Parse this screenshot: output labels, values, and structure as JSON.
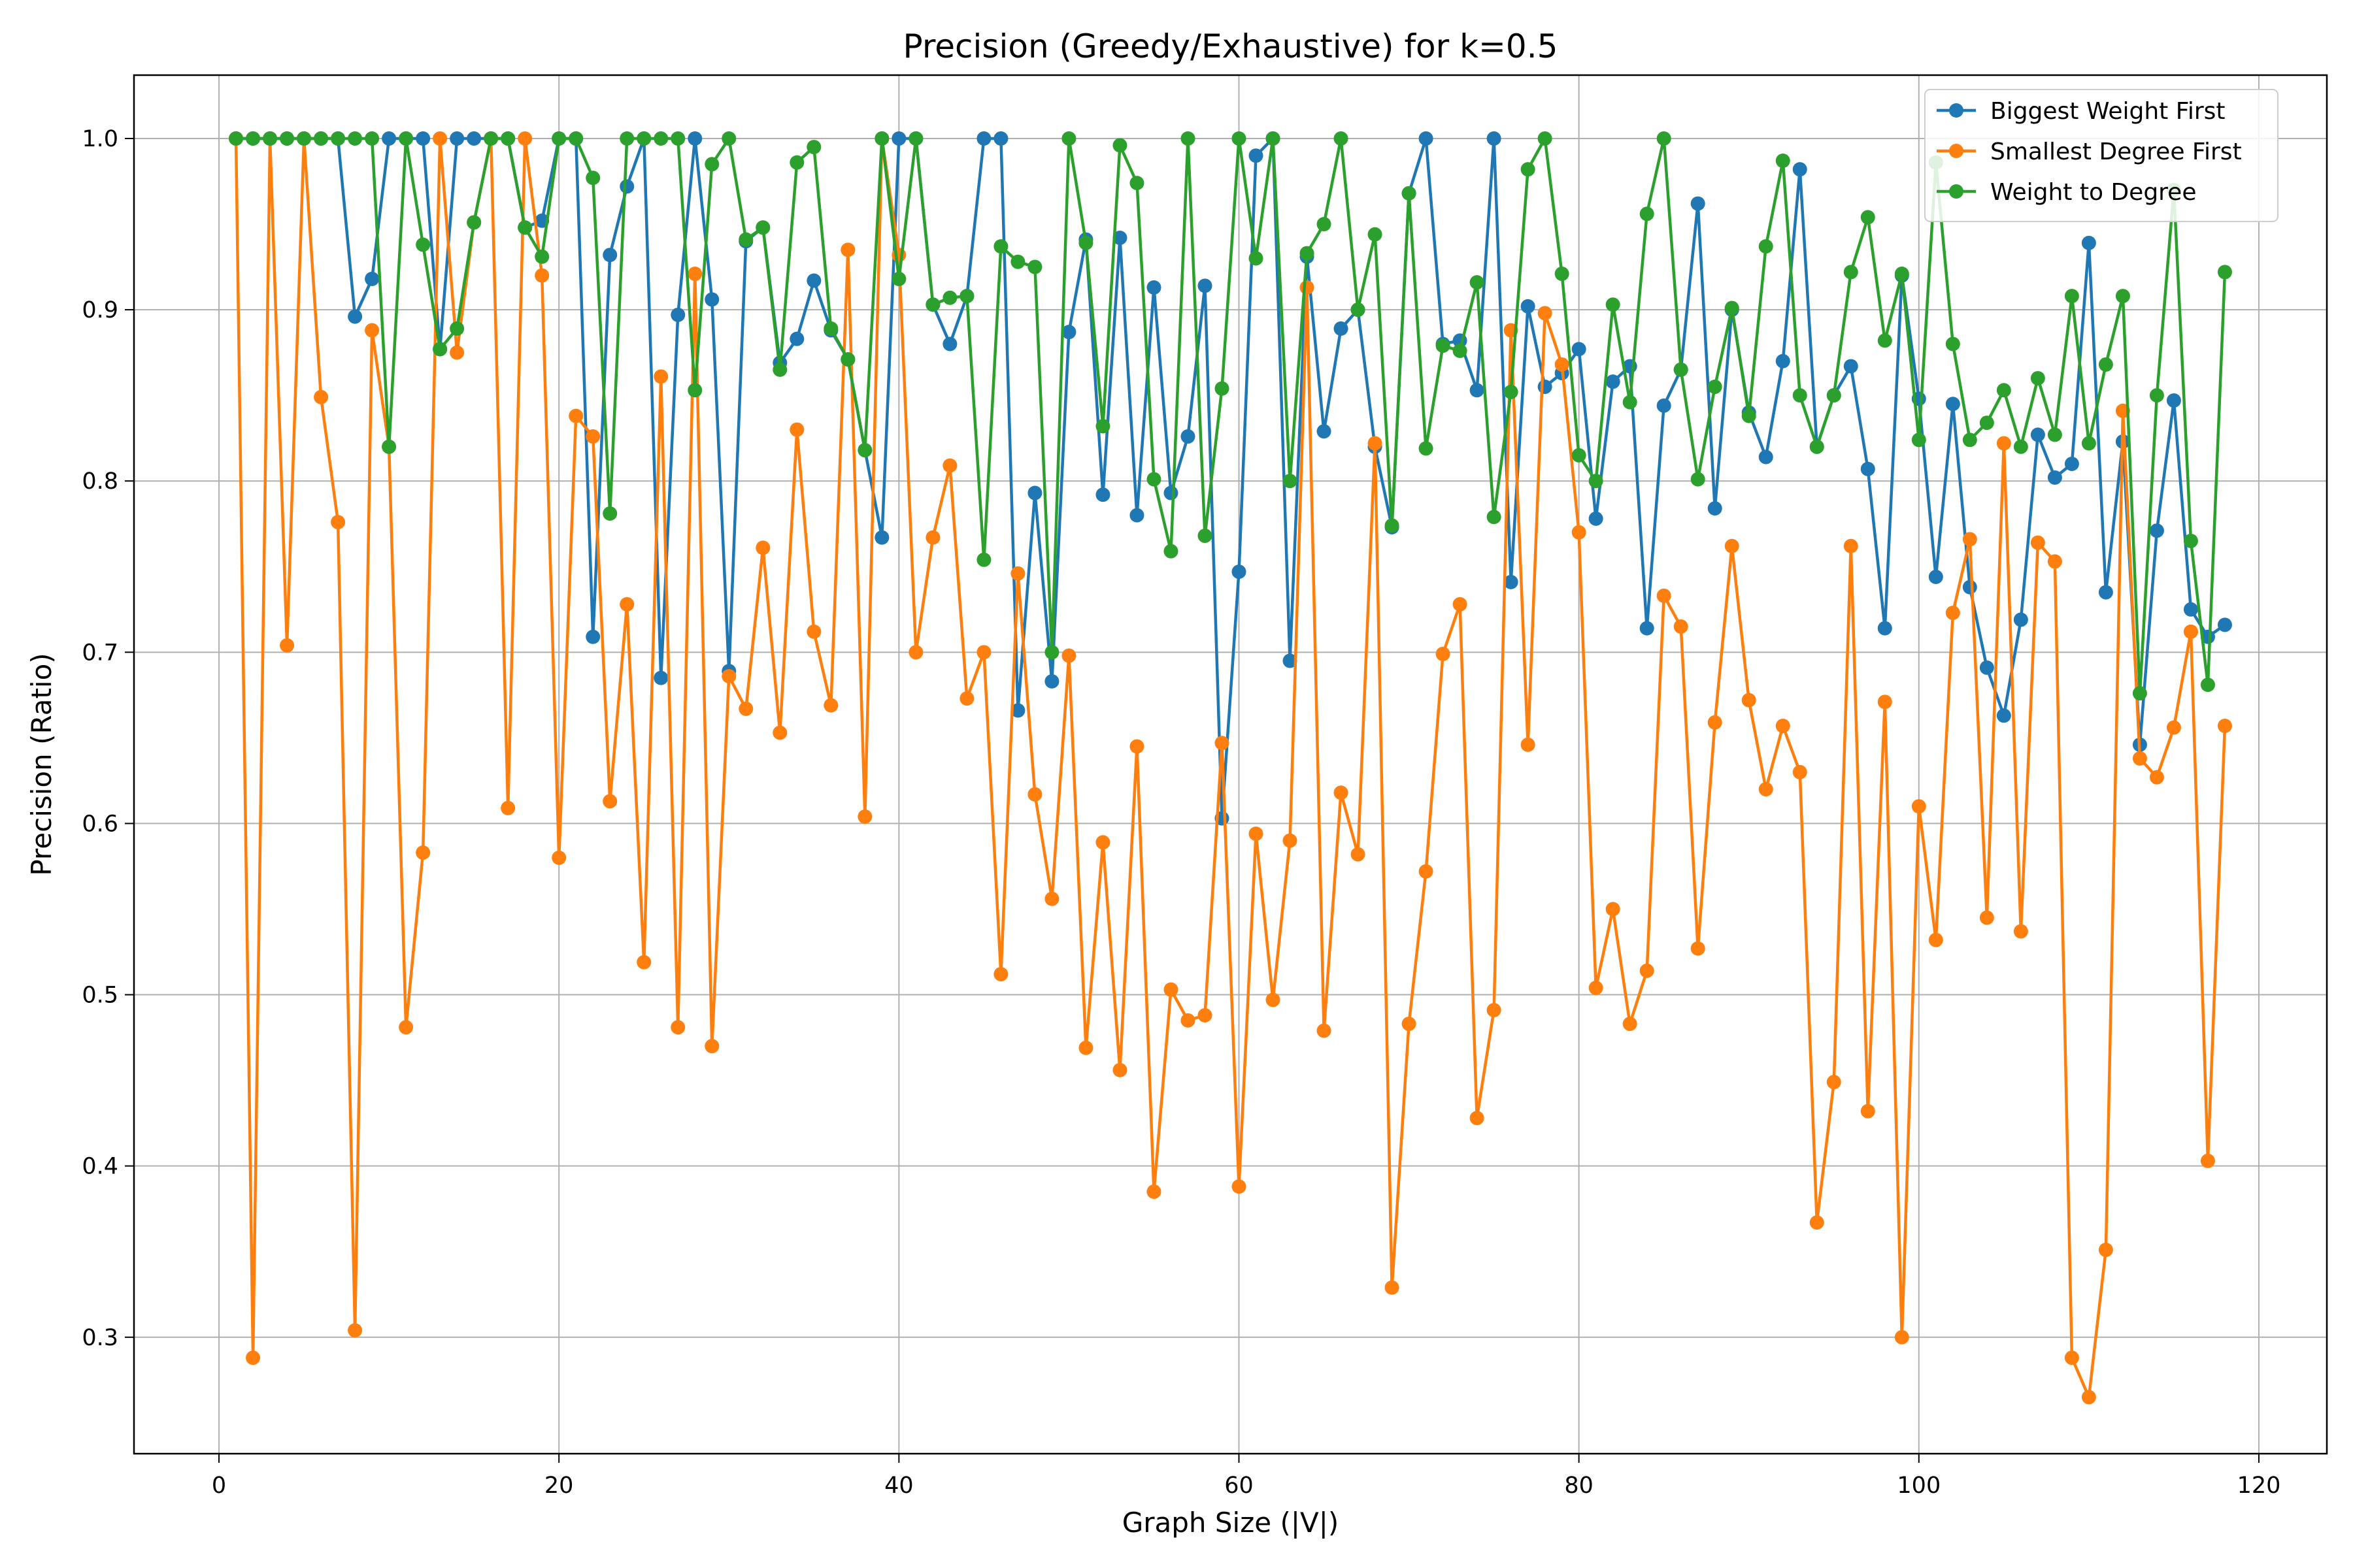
{
  "chart_data": {
    "type": "line",
    "title": "Precision (Greedy/Exhaustive) for k=0.5",
    "xlabel": "Graph Size (|V|)",
    "ylabel": "Precision (Ratio)",
    "xlim": [
      -5,
      124
    ],
    "ylim": [
      0.232,
      1.037
    ],
    "xticks": [
      0,
      20,
      40,
      60,
      80,
      100,
      120
    ],
    "yticks": [
      0.3,
      0.4,
      0.5,
      0.6,
      0.7,
      0.8,
      0.9,
      1.0
    ],
    "grid": true,
    "legend_position": "top-right",
    "x": [
      1,
      2,
      3,
      4,
      5,
      6,
      7,
      8,
      9,
      10,
      11,
      12,
      13,
      14,
      15,
      16,
      17,
      18,
      19,
      20,
      21,
      22,
      23,
      24,
      25,
      26,
      27,
      28,
      29,
      30,
      31,
      32,
      33,
      34,
      35,
      36,
      37,
      38,
      39,
      40,
      41,
      42,
      43,
      44,
      45,
      46,
      47,
      48,
      49,
      50,
      51,
      52,
      53,
      54,
      55,
      56,
      57,
      58,
      59,
      60,
      61,
      62,
      63,
      64,
      65,
      66,
      67,
      68,
      69,
      70,
      71,
      72,
      73,
      74,
      75,
      76,
      77,
      78,
      79,
      80,
      81,
      82,
      83,
      84,
      85,
      86,
      87,
      88,
      89,
      90,
      91,
      92,
      93,
      94,
      95,
      96,
      97,
      98,
      99,
      100,
      101,
      102,
      103,
      104,
      105,
      106,
      107,
      108,
      109,
      110,
      111,
      112,
      113,
      114,
      115,
      116,
      117,
      118
    ],
    "series": [
      {
        "name": "Biggest Weight First",
        "color": "#1f77b4",
        "values": [
          1.0,
          1.0,
          1.0,
          1.0,
          1.0,
          1.0,
          1.0,
          0.896,
          0.918,
          1.0,
          1.0,
          1.0,
          0.877,
          1.0,
          1.0,
          1.0,
          1.0,
          0.948,
          0.952,
          1.0,
          1.0,
          0.709,
          0.932,
          0.972,
          1.0,
          0.685,
          0.897,
          1.0,
          0.906,
          0.689,
          0.94,
          0.948,
          0.869,
          0.883,
          0.917,
          0.888,
          0.871,
          0.818,
          0.767,
          1.0,
          1.0,
          0.903,
          0.88,
          0.908,
          1.0,
          1.0,
          0.666,
          0.793,
          0.683,
          0.887,
          0.941,
          0.792,
          0.942,
          0.78,
          0.913,
          0.793,
          0.826,
          0.914,
          0.603,
          0.747,
          0.99,
          1.0,
          0.695,
          0.931,
          0.829,
          0.889,
          0.9,
          0.82,
          0.773,
          0.968,
          1.0,
          0.88,
          0.882,
          0.853,
          1.0,
          0.741,
          0.902,
          0.855,
          0.863,
          0.877,
          0.778,
          0.858,
          0.867,
          0.714,
          0.844,
          0.865,
          0.962,
          0.784,
          0.9,
          0.84,
          0.814,
          0.87,
          0.982,
          0.82,
          0.85,
          0.867,
          0.807,
          0.714,
          0.92,
          0.848,
          0.744,
          0.845,
          0.738,
          0.691,
          0.663,
          0.719,
          0.827,
          0.802,
          0.81,
          0.939,
          0.735,
          0.823,
          0.646,
          0.771,
          0.847,
          0.725,
          0.709,
          0.716
        ]
      },
      {
        "name": "Smallest Degree First",
        "color": "#ff7f0e",
        "values": [
          1.0,
          0.288,
          1.0,
          0.704,
          1.0,
          0.849,
          0.776,
          0.304,
          0.888,
          0.82,
          0.481,
          0.583,
          1.0,
          0.875,
          0.951,
          1.0,
          0.609,
          1.0,
          0.92,
          0.58,
          0.838,
          0.826,
          0.613,
          0.728,
          0.519,
          0.861,
          0.481,
          0.921,
          0.47,
          0.686,
          0.667,
          0.761,
          0.653,
          0.83,
          0.712,
          0.669,
          0.935,
          0.604,
          1.0,
          0.932,
          0.7,
          0.767,
          0.809,
          0.673,
          0.7,
          0.512,
          0.746,
          0.617,
          0.556,
          0.698,
          0.469,
          0.589,
          0.456,
          0.645,
          0.385,
          0.503,
          0.485,
          0.488,
          0.647,
          0.388,
          0.594,
          0.497,
          0.59,
          0.913,
          0.479,
          0.618,
          0.582,
          0.822,
          0.329,
          0.483,
          0.572,
          0.699,
          0.728,
          0.428,
          0.491,
          0.888,
          0.646,
          0.898,
          0.868,
          0.77,
          0.504,
          0.55,
          0.483,
          0.514,
          0.733,
          0.715,
          0.527,
          0.659,
          0.762,
          0.672,
          0.62,
          0.657,
          0.63,
          0.367,
          0.449,
          0.762,
          0.432,
          0.671,
          0.3,
          0.61,
          0.532,
          0.723,
          0.766,
          0.545,
          0.822,
          0.537,
          0.764,
          0.753,
          0.288,
          0.265,
          0.351,
          0.841,
          0.638,
          0.627,
          0.656,
          0.712,
          0.403,
          0.657
        ]
      },
      {
        "name": "Weight to Degree",
        "color": "#2ca02c",
        "values": [
          1.0,
          1.0,
          1.0,
          1.0,
          1.0,
          1.0,
          1.0,
          1.0,
          1.0,
          0.82,
          1.0,
          0.938,
          0.877,
          0.889,
          0.951,
          1.0,
          1.0,
          0.948,
          0.931,
          1.0,
          1.0,
          0.977,
          0.781,
          1.0,
          1.0,
          1.0,
          1.0,
          0.853,
          0.985,
          1.0,
          0.941,
          0.948,
          0.865,
          0.986,
          0.995,
          0.889,
          0.871,
          0.818,
          1.0,
          0.918,
          1.0,
          0.903,
          0.907,
          0.908,
          0.754,
          0.937,
          0.928,
          0.925,
          0.7,
          1.0,
          0.939,
          0.832,
          0.996,
          0.974,
          0.801,
          0.759,
          1.0,
          0.768,
          0.854,
          1.0,
          0.93,
          1.0,
          0.8,
          0.933,
          0.95,
          1.0,
          0.9,
          0.944,
          0.774,
          0.968,
          0.819,
          0.879,
          0.876,
          0.916,
          0.779,
          0.852,
          0.982,
          1.0,
          0.921,
          0.815,
          0.8,
          0.903,
          0.846,
          0.956,
          1.0,
          0.865,
          0.801,
          0.855,
          0.901,
          0.838,
          0.937,
          0.987,
          0.85,
          0.82,
          0.85,
          0.922,
          0.954,
          0.882,
          0.921,
          0.824,
          0.986,
          0.88,
          0.824,
          0.834,
          0.853,
          0.82,
          0.86,
          0.827,
          0.908,
          0.822,
          0.868,
          0.908,
          0.676,
          0.85,
          0.97,
          0.765,
          0.681,
          0.922
        ]
      }
    ]
  }
}
